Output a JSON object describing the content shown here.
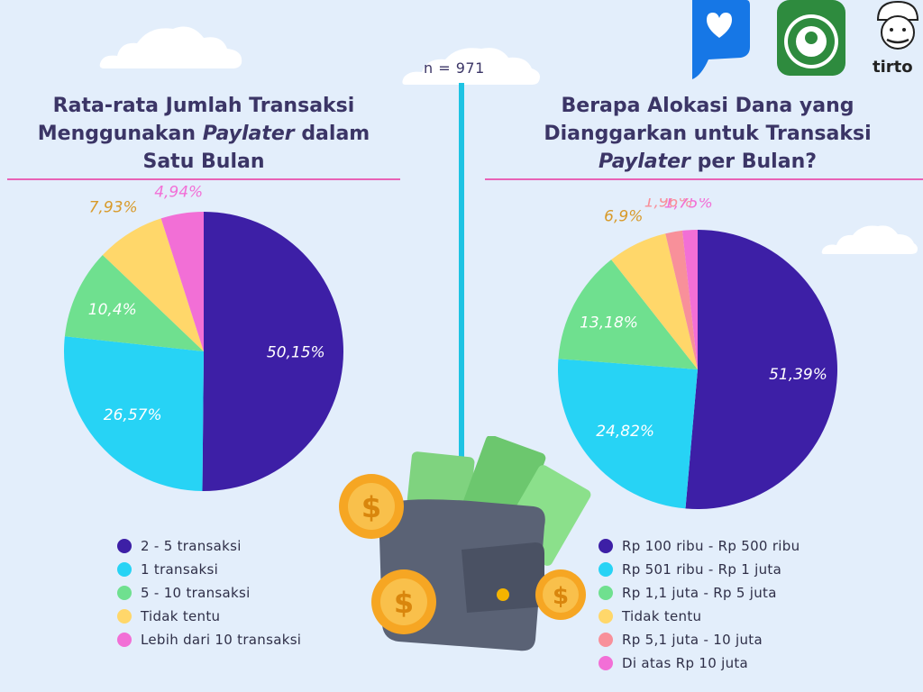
{
  "sample": "n = 971",
  "brand": {
    "tirto": "tirto"
  },
  "colors": {
    "purple": "#3d1fa6",
    "cyan": "#27d3f5",
    "green": "#6fe08f",
    "yellow": "#ffd76a",
    "salmon": "#f8909a",
    "pink": "#f26fd6"
  },
  "chart_data": [
    {
      "type": "pie",
      "title": [
        "Rata-rata Jumlah Transaksi",
        "Menggunakan",
        "Paylater",
        "dalam",
        "Satu Bulan"
      ],
      "slices": [
        {
          "label": "2 - 5 transaksi",
          "value": 50.15,
          "display": "50,15%",
          "color": "#3d1fa6"
        },
        {
          "label": "1 transaksi",
          "value": 26.57,
          "display": "26,57%",
          "color": "#27d3f5"
        },
        {
          "label": "5 - 10 transaksi",
          "value": 10.4,
          "display": "10,4%",
          "color": "#6fe08f"
        },
        {
          "label": "Tidak tentu",
          "value": 7.93,
          "display": "7,93%",
          "color": "#ffd76a"
        },
        {
          "label": "Lebih dari 10 transaksi",
          "value": 4.94,
          "display": "4,94%",
          "color": "#f26fd6"
        }
      ]
    },
    {
      "type": "pie",
      "title": [
        "Berapa Alokasi Dana yang",
        "Dianggarkan untuk Transaksi",
        "Paylater",
        "per Bulan?"
      ],
      "slices": [
        {
          "label": "Rp 100 ribu - Rp 500 ribu",
          "value": 51.39,
          "display": "51,39%",
          "color": "#3d1fa6"
        },
        {
          "label": "Rp 501 ribu - Rp 1 juta",
          "value": 24.82,
          "display": "24,82%",
          "color": "#27d3f5"
        },
        {
          "label": "Rp 1,1 juta - Rp 5 juta",
          "value": 13.18,
          "display": "13,18%",
          "color": "#6fe08f"
        },
        {
          "label": "Tidak tentu",
          "value": 6.9,
          "display": "6,9%",
          "color": "#ffd76a"
        },
        {
          "label": "Rp 5,1 juta - 10 juta",
          "value": 1.96,
          "display": "1,96%",
          "color": "#f8909a"
        },
        {
          "label": "Di atas Rp 10 juta",
          "value": 1.75,
          "display": "1,75%",
          "color": "#f26fd6"
        }
      ]
    }
  ]
}
